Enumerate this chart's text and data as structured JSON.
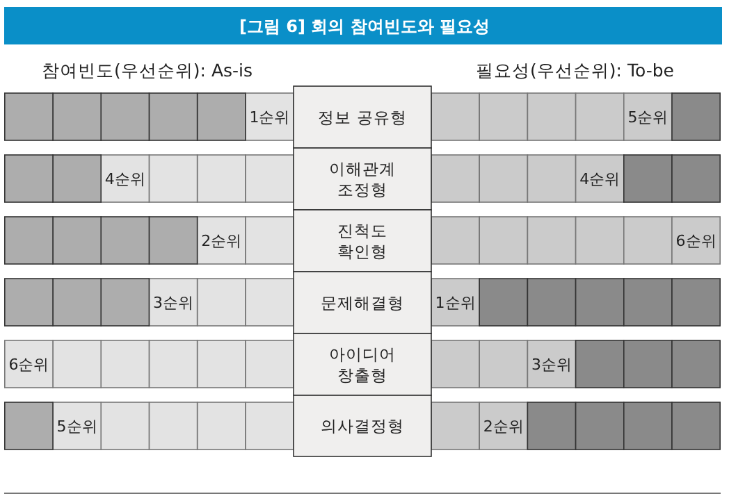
{
  "chart_data": {
    "type": "other",
    "title": "[그림 6] 회의 참여빈도와 필요성",
    "categories": [
      "정보 공유형",
      "이해관계\n조정형",
      "진척도\n확인형",
      "문제해결형",
      "아이디어\n창출형",
      "의사결정형"
    ],
    "series": [
      {
        "name": "참여빈도(우선순위): As-is",
        "color": "#e3e3e3",
        "values": [
          1,
          4,
          2,
          3,
          6,
          5
        ],
        "value_labels": [
          "1순위",
          "4순위",
          "2순위",
          "3순위",
          "6순위",
          "5순위"
        ]
      },
      {
        "name": "필요성(우선순위): To-be",
        "color": "#cbcbcb",
        "values": [
          5,
          4,
          6,
          1,
          3,
          2
        ],
        "value_labels": [
          "5순위",
          "4순위",
          "6순위",
          "1순위",
          "3순위",
          "2순위"
        ]
      }
    ]
  }
}
